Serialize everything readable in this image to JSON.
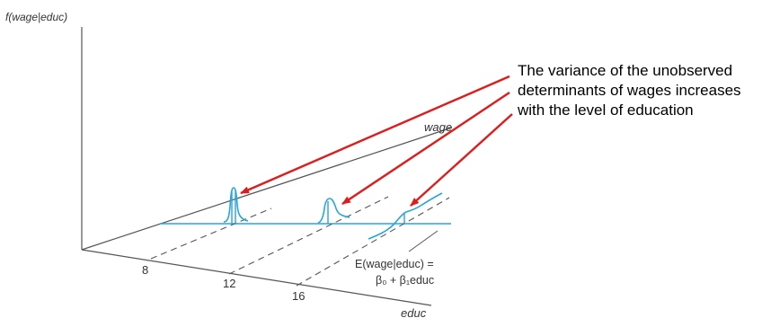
{
  "axes": {
    "y_label": "f(wage|educ)",
    "wage_label": "wage",
    "educ_label": "educ"
  },
  "ticks": [
    "8",
    "12",
    "16"
  ],
  "regression_label": {
    "line1": "E(wage|educ) =",
    "line2": "β₀ + β₁educ"
  },
  "annotation": {
    "line1": "The variance of the unobserved",
    "line2": "determinants of wages increases",
    "line3": "with the level of education"
  },
  "colors": {
    "axis": "#555555",
    "curve": "#29a6d8",
    "arrow": "#e01b1b",
    "text": "#000000"
  }
}
